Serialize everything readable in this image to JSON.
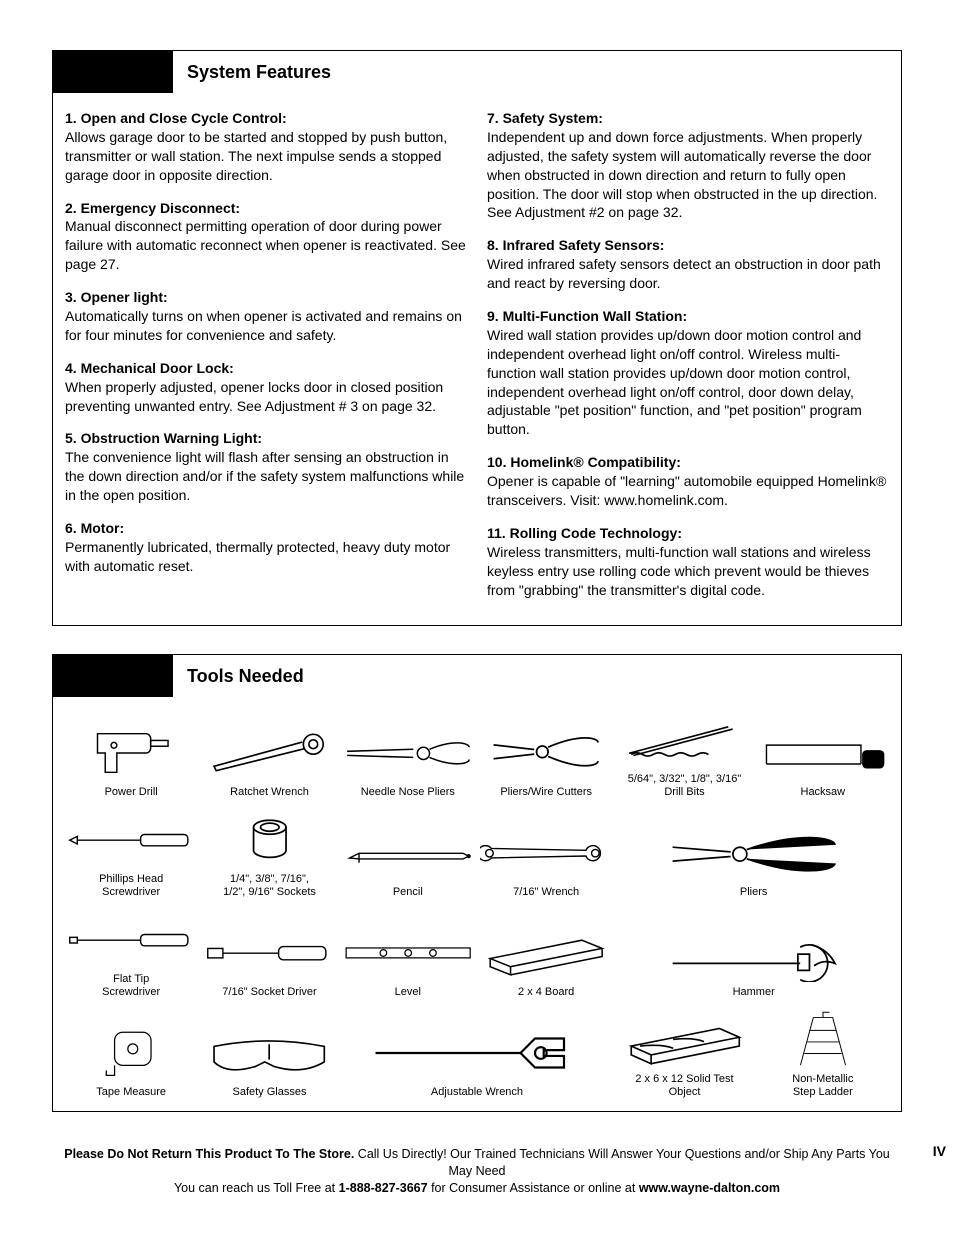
{
  "sections": {
    "features": {
      "title": "System Features",
      "left": [
        {
          "title": "1. Open and Close Cycle Control:",
          "body": "Allows garage door to be started and stopped by push button, transmitter or wall station. The next impulse sends a stopped garage door in opposite direction."
        },
        {
          "title": "2. Emergency Disconnect:",
          "body": "Manual disconnect permitting operation of door during power failure with automatic reconnect when opener is reactivated. See page 27."
        },
        {
          "title": "3. Opener light:",
          "body": "Automatically turns on when opener is activated and remains on for four minutes for convenience and safety."
        },
        {
          "title": "4. Mechanical Door Lock:",
          "body": "When properly adjusted, opener locks door in closed position preventing unwanted entry.  See Adjustment # 3 on page 32."
        },
        {
          "title": "5. Obstruction Warning Light:",
          "body": "The convenience light will flash after sensing an obstruction in the down direction and/or if the safety system malfunctions while in the open position."
        },
        {
          "title": "6. Motor:",
          "body": "Permanently lubricated, thermally protected, heavy duty motor with automatic reset."
        }
      ],
      "right": [
        {
          "title": "7. Safety System:",
          "body": "Independent up and down force adjustments. When properly adjusted, the safety system will automatically reverse the door when obstructed in down direction and return to fully open position.  The door will stop when obstructed in the up direction. See Adjustment #2 on page 32."
        },
        {
          "title": "8. Infrared Safety Sensors:",
          "body": "Wired infrared safety sensors detect an obstruction in door path and react by reversing door."
        },
        {
          "title": "9. Multi-Function Wall Station:",
          "body": "Wired wall station provides up/down door motion control and independent overhead light on/off control. Wireless multi-function wall station provides up/down door motion control, independent overhead light on/off control, door down delay, adjustable \"pet position\" function, and \"pet position\" program button."
        },
        {
          "title": "10. Homelink® Compatibility:",
          "body": "Opener is capable of \"learning\" automobile equipped Homelink® transceivers. Visit: www.homelink.com."
        },
        {
          "title": "11. Rolling Code Technology:",
          "body": "Wireless transmitters, multi-function wall stations and wireless keyless entry use rolling code which prevent would be thieves from \"grabbing\" the transmitter's digital code."
        }
      ]
    },
    "tools": {
      "title": "Tools Needed",
      "items": [
        {
          "id": "power-drill",
          "label": "Power Drill"
        },
        {
          "id": "ratchet-wrench",
          "label": "Ratchet Wrench"
        },
        {
          "id": "needle-nose-pliers",
          "label": "Needle Nose Pliers"
        },
        {
          "id": "pliers-wire-cutters",
          "label": "Pliers/Wire Cutters"
        },
        {
          "id": "drill-bits",
          "label": "5/64\", 3/32\", 1/8\", 3/16\"\nDrill Bits"
        },
        {
          "id": "hacksaw",
          "label": "Hacksaw"
        },
        {
          "id": "phillips-screwdriver",
          "label": "Phillips Head\nScrewdriver"
        },
        {
          "id": "sockets",
          "label": "1/4\", 3/8\", 7/16\",\n1/2\", 9/16\" Sockets"
        },
        {
          "id": "pencil",
          "label": "Pencil"
        },
        {
          "id": "wrench-716",
          "label": "7/16\" Wrench"
        },
        {
          "id": "pliers",
          "label": "Pliers",
          "span": 2
        },
        {
          "id": "flat-screwdriver",
          "label": "Flat Tip\nScrewdriver"
        },
        {
          "id": "socket-driver",
          "label": "7/16\" Socket Driver"
        },
        {
          "id": "level",
          "label": "Level"
        },
        {
          "id": "board-2x4",
          "label": "2 x 4 Board"
        },
        {
          "id": "hammer",
          "label": "Hammer",
          "span": 2
        },
        {
          "id": "tape-measure",
          "label": "Tape Measure"
        },
        {
          "id": "safety-glasses",
          "label": "Safety Glasses"
        },
        {
          "id": "adjustable-wrench",
          "label": "Adjustable Wrench",
          "span": 2
        },
        {
          "id": "test-object",
          "label": "2 x 6 x 12 Solid Test\nObject"
        },
        {
          "id": "step-ladder",
          "label": "Non-Metallic\nStep Ladder"
        }
      ]
    }
  },
  "footer": {
    "line1_bold": "Please Do Not Return This Product To The Store.",
    "line1_rest": " Call Us Directly! Our Trained Technicians Will Answer Your Questions and/or Ship Any Parts You May Need",
    "line2_a": "You can reach us Toll Free at ",
    "line2_phone": "1-888-827-3667",
    "line2_b": " for Consumer Assistance or online at ",
    "line2_url": "www.wayne-dalton.com",
    "page_num": "IV"
  },
  "style": {
    "stroke": "#000000",
    "fill": "none",
    "page_bg": "#ffffff"
  }
}
